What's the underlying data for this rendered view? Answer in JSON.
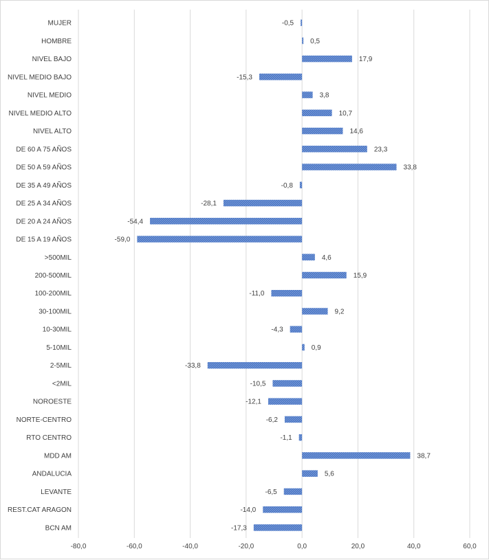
{
  "chart_data": {
    "type": "bar",
    "orientation": "horizontal",
    "categories": [
      "MUJER",
      "HOMBRE",
      "NIVEL BAJO",
      "NIVEL MEDIO BAJO",
      "NIVEL MEDIO",
      "NIVEL MEDIO ALTO",
      "NIVEL ALTO",
      "DE 60 A 75 AÑOS",
      "DE 50 A 59 AÑOS",
      "DE 35 A 49 AÑOS",
      "DE 25 A 34 AÑOS",
      "DE 20 A 24 AÑOS",
      "DE 15 A 19 AÑOS",
      ">500MIL",
      "200-500MIL",
      "100-200MIL",
      "30-100MIL",
      "10-30MIL",
      "5-10MIL",
      "2-5MIL",
      "<2MIL",
      "NOROESTE",
      "NORTE-CENTRO",
      "RTO CENTRO",
      "MDD AM",
      "ANDALUCIA",
      "LEVANTE",
      "REST.CAT ARAGON",
      "BCN AM"
    ],
    "values": [
      -0.5,
      0.5,
      17.9,
      -15.3,
      3.8,
      10.7,
      14.6,
      23.3,
      33.8,
      -0.8,
      -28.1,
      -54.4,
      -59.0,
      4.6,
      15.9,
      -11.0,
      9.2,
      -4.3,
      0.9,
      -33.8,
      -10.5,
      -12.1,
      -6.2,
      -1.1,
      38.7,
      5.6,
      -6.5,
      -14.0,
      -17.3
    ],
    "value_labels": [
      "-0,5",
      "0,5",
      "17,9",
      "-15,3",
      "3,8",
      "10,7",
      "14,6",
      "23,3",
      "33,8",
      "-0,8",
      "-28,1",
      "-54,4",
      "-59,0",
      "4,6",
      "15,9",
      "-11,0",
      "9,2",
      "-4,3",
      "0,9",
      "-33,8",
      "-10,5",
      "-12,1",
      "-6,2",
      "-1,1",
      "38,7",
      "5,6",
      "-6,5",
      "-14,0",
      "-17,3"
    ],
    "xlim": [
      -80,
      60
    ],
    "x_ticks": [
      -80,
      -60,
      -40,
      -20,
      0,
      20,
      40,
      60
    ],
    "x_tick_labels": [
      "-80,0",
      "-60,0",
      "-40,0",
      "-20,0",
      "0,0",
      "20,0",
      "40,0",
      "60,0"
    ],
    "title": "",
    "xlabel": "",
    "ylabel": "",
    "grid": "vertical",
    "legend": "none",
    "colors": {
      "bar_fill": "#4472c4",
      "bar_hatch": "#8faadc",
      "grid": "#d9d9d9",
      "text": "#404040"
    }
  }
}
